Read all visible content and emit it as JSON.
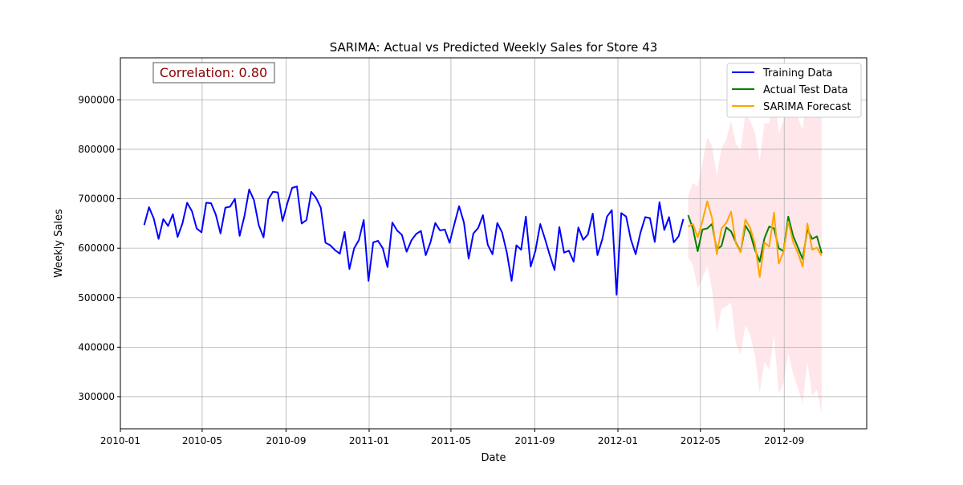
{
  "chart_data": {
    "type": "line",
    "title": "SARIMA: Actual vs Predicted Weekly Sales for Store 43",
    "xlabel": "Date",
    "ylabel": "Weekly Sales",
    "xlim": [
      "2010-01-01",
      "2012-12-31"
    ],
    "ylim": [
      235000,
      985000
    ],
    "x_tick_labels": [
      "2010-01",
      "2010-05",
      "2010-09",
      "2011-01",
      "2011-05",
      "2011-09",
      "2012-01",
      "2012-05",
      "2012-09"
    ],
    "y_tick_labels": [
      "300000",
      "400000",
      "500000",
      "600000",
      "700000",
      "800000",
      "900000"
    ],
    "grid": true,
    "legend_position": "top-right",
    "annotation": "Correlation: 0.80",
    "colors": {
      "training": "#0000ff",
      "actual_test": "#008000",
      "forecast": "#ffa500",
      "confidence_band": "#ffc0cb",
      "annotation_text": "#8b0000"
    },
    "series": [
      {
        "name": "Training Data",
        "start_date": "2010-02-05",
        "step_days": 7,
        "values": [
          647000,
          683000,
          660000,
          619000,
          659000,
          645000,
          669000,
          623000,
          650000,
          692000,
          675000,
          640000,
          632000,
          692000,
          691000,
          668000,
          630000,
          682000,
          684000,
          700000,
          625000,
          665000,
          719000,
          697000,
          647000,
          622000,
          699000,
          714000,
          713000,
          655000,
          691000,
          722000,
          725000,
          650000,
          657000,
          714000,
          702000,
          682000,
          611000,
          606000,
          596000,
          589000,
          633000,
          558000,
          600000,
          617000,
          657000,
          534000,
          612000,
          615000,
          600000,
          562000,
          652000,
          636000,
          627000,
          593000,
          616000,
          629000,
          635000,
          586000,
          612000,
          651000,
          636000,
          638000,
          611000,
          649000,
          685000,
          652000,
          579000,
          630000,
          641000,
          667000,
          607000,
          588000,
          651000,
          632000,
          591000,
          534000,
          606000,
          597000,
          664000,
          563000,
          595000,
          649000,
          619000,
          586000,
          556000,
          643000,
          591000,
          595000,
          573000,
          642000,
          617000,
          628000,
          670000,
          586000,
          618000,
          664000,
          677000,
          506000,
          671000,
          664000,
          618000,
          588000,
          631000,
          663000,
          661000,
          613000,
          693000,
          637000,
          663000,
          612000,
          624000,
          659000
        ]
      },
      {
        "name": "Actual Test Data",
        "start_date": "2012-04-13",
        "step_days": 7,
        "values": [
          667000,
          640000,
          594000,
          638000,
          640000,
          649000,
          597000,
          605000,
          642000,
          634000,
          612000,
          593000,
          646000,
          630000,
          597000,
          573000,
          620000,
          644000,
          640000,
          600000,
          594000,
          664000,
          625000,
          602000,
          578000,
          638000,
          619000,
          624000,
          590000
        ]
      },
      {
        "name": "SARIMA Forecast",
        "start_date": "2012-04-13",
        "step_days": 7,
        "values": [
          644000,
          649000,
          622000,
          655000,
          695000,
          662000,
          588000,
          640000,
          651000,
          674000,
          610000,
          592000,
          658000,
          641000,
          609000,
          542000,
          612000,
          603000,
          672000,
          569000,
          593000,
          654000,
          613000,
          591000,
          563000,
          650000,
          597000,
          601000,
          585000
        ]
      }
    ],
    "confidence_band": {
      "start_date": "2012-04-13",
      "step_days": 7,
      "upper": [
        706000,
        732000,
        725000,
        771000,
        825000,
        807000,
        747000,
        802000,
        820000,
        858000,
        812000,
        799000,
        871000,
        857000,
        834000,
        776000,
        853000,
        852000,
        920000,
        832000,
        858000,
        920000,
        880000,
        865000,
        839000,
        930000,
        892000,
        888000,
        872000
      ],
      "lower": [
        582000,
        566000,
        519000,
        539000,
        565000,
        517000,
        429000,
        478000,
        482000,
        490000,
        408000,
        385000,
        445000,
        425000,
        384000,
        308000,
        371000,
        354000,
        424000,
        306000,
        328000,
        388000,
        346000,
        317000,
        287000,
        370000,
        302000,
        314000,
        265000
      ]
    }
  }
}
